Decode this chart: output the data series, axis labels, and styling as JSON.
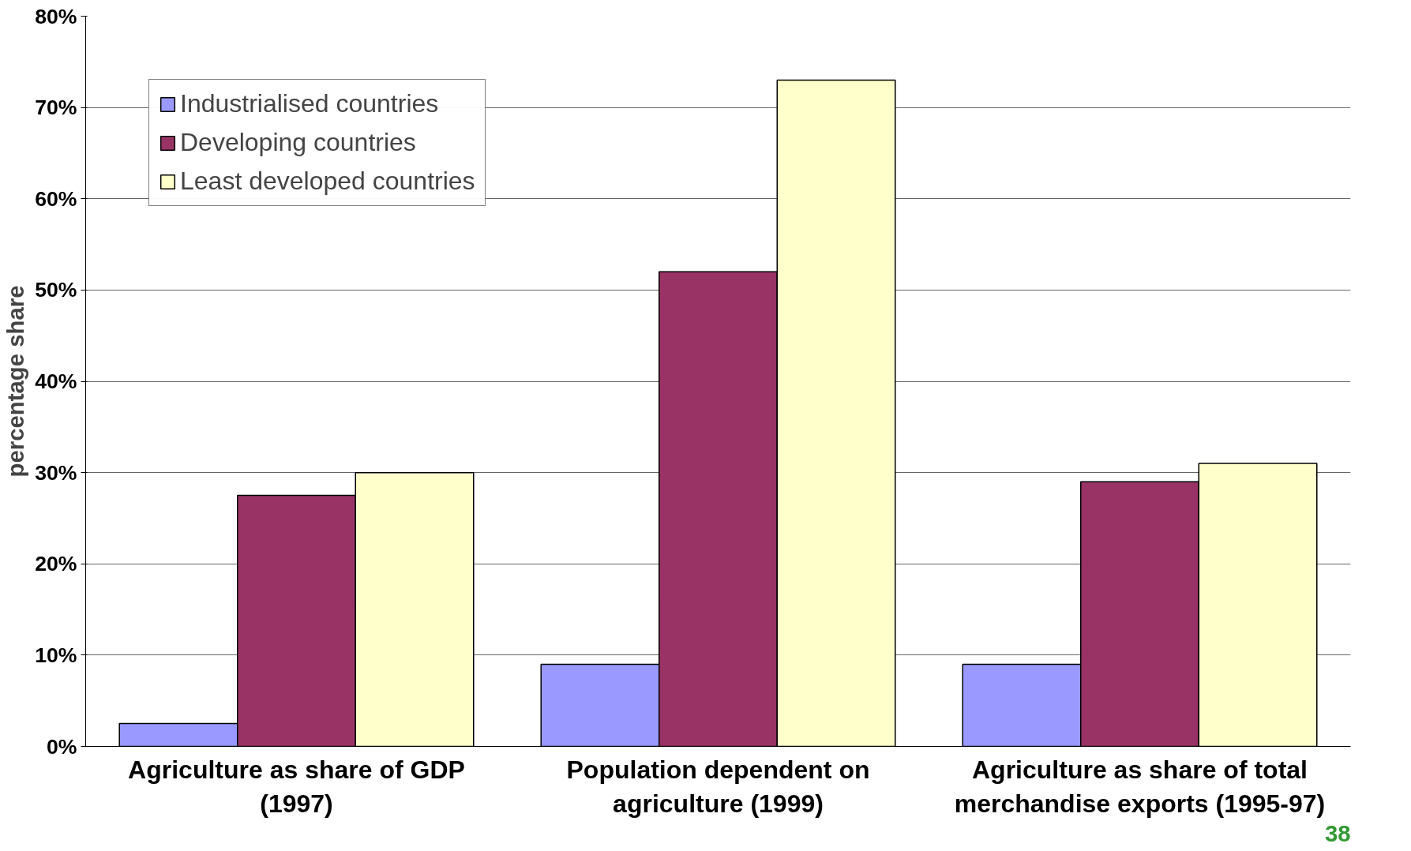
{
  "chart_data": {
    "type": "bar",
    "ylabel": "percentage share",
    "categories": [
      "Agriculture as share of GDP (1997)",
      "Population dependent on agriculture (1999)",
      "Agriculture as share of total merchandise exports (1995-97)"
    ],
    "series": [
      {
        "name": "Industrialised countries",
        "color": "#9999ff",
        "values": [
          2.5,
          9,
          9
        ]
      },
      {
        "name": "Developing countries",
        "color": "#993366",
        "values": [
          27.5,
          52,
          29
        ]
      },
      {
        "name": "Least developed countries",
        "color": "#ffffcc",
        "values": [
          30,
          73,
          31
        ]
      }
    ],
    "ylim": [
      0,
      80
    ],
    "yticks": [
      {
        "value": 0,
        "label": "0%"
      },
      {
        "value": 10,
        "label": "10%"
      },
      {
        "value": 20,
        "label": "20%"
      },
      {
        "value": 30,
        "label": "30%"
      },
      {
        "value": 40,
        "label": "40%"
      },
      {
        "value": 50,
        "label": "50%"
      },
      {
        "value": 60,
        "label": "60%"
      },
      {
        "value": 70,
        "label": "70%"
      },
      {
        "value": 80,
        "label": "80%"
      }
    ],
    "grid": "y",
    "legend": "top left",
    "annotations": [
      "38"
    ]
  }
}
